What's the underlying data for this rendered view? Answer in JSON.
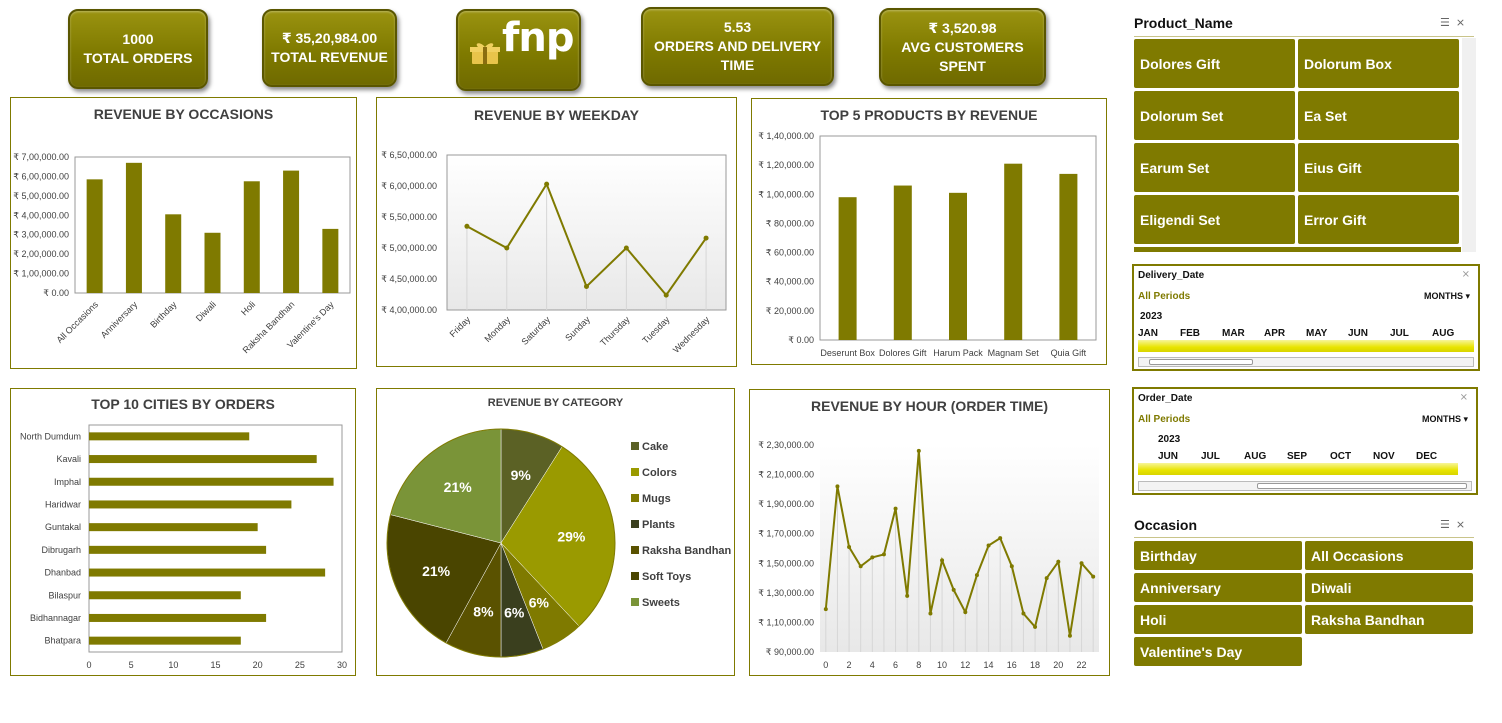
{
  "kpis": [
    {
      "value": "1000",
      "label": "TOTAL ORDERS"
    },
    {
      "value": "₹ 35,20,984.00",
      "label": "TOTAL REVENUE"
    },
    {
      "value": "5.53",
      "label": "ORDERS AND DELIVERY\nTIME"
    },
    {
      "value": "₹ 3,520.98",
      "label": "AVG CUSTOMERS\nSPENT"
    }
  ],
  "logo": {
    "text": "fnp"
  },
  "colors": {
    "accent": "#7f7a00",
    "accent_dark": "#5a5600",
    "pie": [
      "#5b6125",
      "#9a9a00",
      "#7f7a00",
      "#3a3f1e",
      "#5a5200",
      "#4a4500",
      "#7a9438"
    ]
  },
  "charts": {
    "occasions": {
      "title": "REVENUE BY OCCASIONS",
      "yticks": [
        "₹ 7,00,000.00",
        "₹ 6,00,000.00",
        "₹ 5,00,000.00",
        "₹ 4,00,000.00",
        "₹ 3,00,000.00",
        "₹ 2,00,000.00",
        "₹ 1,00,000.00",
        "₹ 0.00"
      ]
    },
    "weekday": {
      "title": "REVENUE BY WEEKDAY",
      "yticks": [
        "₹ 6,50,000.00",
        "₹ 6,00,000.00",
        "₹ 5,50,000.00",
        "₹ 5,00,000.00",
        "₹ 4,50,000.00",
        "₹ 4,00,000.00"
      ]
    },
    "top5": {
      "title": "TOP 5 PRODUCTS BY REVENUE",
      "yticks": [
        "₹ 1,40,000.00",
        "₹ 1,20,000.00",
        "₹ 1,00,000.00",
        "₹ 80,000.00",
        "₹ 60,000.00",
        "₹ 40,000.00",
        "₹ 20,000.00",
        "₹ 0.00"
      ]
    },
    "cities": {
      "title": "TOP 10 CITIES BY ORDERS"
    },
    "category": {
      "title": "REVENUE BY CATEGORY"
    },
    "hour": {
      "title": "REVENUE BY HOUR (ORDER TIME)",
      "yticks": [
        "₹ 2,30,000.00",
        "₹ 2,10,000.00",
        "₹ 1,90,000.00",
        "₹ 1,70,000.00",
        "₹ 1,50,000.00",
        "₹ 1,30,000.00",
        "₹ 1,10,000.00",
        "₹ 90,000.00"
      ]
    }
  },
  "chart_data": [
    {
      "type": "bar",
      "title": "REVENUE BY OCCASIONS",
      "categories": [
        "All Occasions",
        "Anniversary",
        "Birthday",
        "Diwali",
        "Holi",
        "Raksha Bandhan",
        "Valentine's Day"
      ],
      "values": [
        585000,
        670000,
        405000,
        310000,
        575000,
        630000,
        330000
      ],
      "ylim": [
        0,
        700000
      ]
    },
    {
      "type": "line",
      "title": "REVENUE BY WEEKDAY",
      "categories": [
        "Friday",
        "Monday",
        "Saturday",
        "Sunday",
        "Thursday",
        "Tuesday",
        "Wednesday"
      ],
      "values": [
        535000,
        500000,
        603000,
        438000,
        500000,
        424000,
        516000
      ],
      "ylim": [
        400000,
        650000
      ]
    },
    {
      "type": "bar",
      "title": "TOP 5 PRODUCTS BY REVENUE",
      "categories": [
        "Deserunt Box",
        "Dolores Gift",
        "Harum Pack",
        "Magnam Set",
        "Quia Gift"
      ],
      "values": [
        98000,
        106000,
        101000,
        121000,
        114000
      ],
      "ylim": [
        0,
        140000
      ]
    },
    {
      "type": "bar",
      "title": "TOP 10 CITIES BY ORDERS",
      "orientation": "horizontal",
      "categories": [
        "North Dumdum",
        "Kavali",
        "Imphal",
        "Haridwar",
        "Guntakal",
        "Dibrugarh",
        "Dhanbad",
        "Bilaspur",
        "Bidhannagar",
        "Bhatpara"
      ],
      "values": [
        19,
        27,
        29,
        24,
        20,
        21,
        28,
        18,
        21,
        18
      ],
      "xlim": [
        0,
        30
      ],
      "xticks": [
        0,
        5,
        10,
        15,
        20,
        25,
        30
      ]
    },
    {
      "type": "pie",
      "title": "REVENUE BY CATEGORY",
      "categories": [
        "Cake",
        "Colors",
        "Mugs",
        "Plants",
        "Raksha Bandhan",
        "Soft Toys",
        "Sweets"
      ],
      "values": [
        9,
        29,
        6,
        6,
        8,
        21,
        21
      ],
      "labels": [
        "9%",
        "29%",
        "6%",
        "6%",
        "8%",
        "21%",
        "21%"
      ]
    },
    {
      "type": "line",
      "title": "REVENUE BY HOUR (ORDER TIME)",
      "x": [
        0,
        1,
        2,
        3,
        4,
        5,
        6,
        7,
        8,
        9,
        10,
        11,
        12,
        13,
        14,
        15,
        16,
        17,
        18,
        19,
        20,
        21,
        22,
        23
      ],
      "values": [
        119000,
        202000,
        161000,
        148000,
        154000,
        156000,
        187000,
        128000,
        226000,
        116000,
        152000,
        132000,
        117000,
        142000,
        162000,
        167000,
        148000,
        116000,
        107000,
        140000,
        151000,
        101000,
        150000,
        141000
      ],
      "xticks": [
        0,
        2,
        4,
        6,
        8,
        10,
        12,
        14,
        16,
        18,
        20,
        22
      ],
      "ylim": [
        90000,
        230000
      ]
    }
  ],
  "slicers": {
    "product": {
      "title": "Product_Name",
      "items": [
        "Dolores Gift",
        "Dolorum Box",
        "Dolorum Set",
        "Ea Set",
        "Earum Set",
        "Eius Gift",
        "Eligendi Set",
        "Error Gift"
      ]
    },
    "delivery": {
      "title": "Delivery_Date",
      "period": "All Periods",
      "unit": "MONTHS",
      "year": "2023",
      "months": [
        "JAN",
        "FEB",
        "MAR",
        "APR",
        "MAY",
        "JUN",
        "JUL",
        "AUG"
      ]
    },
    "order": {
      "title": "Order_Date",
      "period": "All Periods",
      "unit": "MONTHS",
      "year": "2023",
      "months": [
        "JUN",
        "JUL",
        "AUG",
        "SEP",
        "OCT",
        "NOV",
        "DEC"
      ]
    },
    "occasion": {
      "title": "Occasion",
      "items": [
        "Birthday",
        "All Occasions",
        "Anniversary",
        "Diwali",
        "Holi",
        "Raksha Bandhan",
        "Valentine's Day"
      ]
    }
  }
}
